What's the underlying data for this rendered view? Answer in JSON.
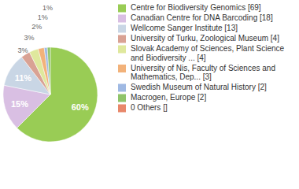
{
  "chart_data": {
    "type": "pie",
    "categories": [
      "Centre for Biodiversity Genomics [69]",
      "Canadian Centre for DNA Barcoding [18]",
      "Wellcome Sanger Institute [13]",
      "University of Turku, Zoological Museum [4]",
      "Slovak Academy of Sciences, Plant Science and Biodiversity ... [4]",
      "University of Nis, Faculty of Sciences and Mathematics, Dep... [3]",
      "Swedish Museum of Natural History [2]",
      "Macrogen, Europe [2]",
      "0 Others []"
    ],
    "values": [
      60,
      15,
      11,
      3,
      3,
      2,
      1,
      1,
      0
    ],
    "value_labels": [
      "60%",
      "15%",
      "11%",
      "3%",
      "3%",
      "2%",
      "1%",
      "1%",
      null
    ],
    "colors": [
      "#99cc55",
      "#d9bfe3",
      "#c9d6e5",
      "#d9a294",
      "#dfe89d",
      "#f2b27a",
      "#9fb9e3",
      "#8fc46a",
      "#e8876a"
    ],
    "data_labels": true,
    "legend": "right"
  }
}
